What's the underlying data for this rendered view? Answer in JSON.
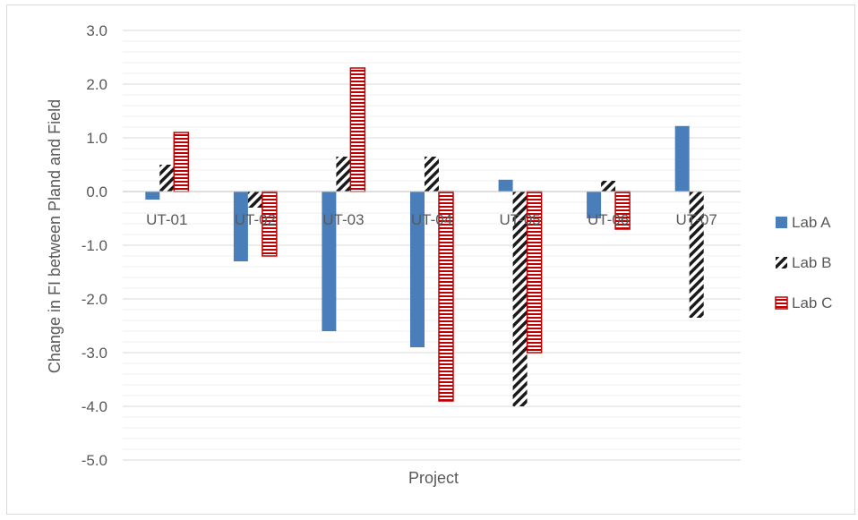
{
  "chart_data": {
    "type": "bar",
    "title": "",
    "xlabel": "Project",
    "ylabel": "Change in FI between Pland and Field",
    "ylim": [
      -5,
      3
    ],
    "yticks": [
      "3.0",
      "2.0",
      "1.0",
      "0.0",
      "-1.0",
      "-2.0",
      "-3.0",
      "-4.0",
      "-5.0"
    ],
    "categories": [
      "UT-01",
      "UT-02",
      "UT-03",
      "UT-04",
      "UT-05",
      "UT-06",
      "UT-07"
    ],
    "series": [
      {
        "name": "Lab A",
        "values": [
          -0.15,
          -1.3,
          -2.6,
          -2.9,
          0.22,
          -0.5,
          1.22
        ],
        "color": "#4a7ebb",
        "pattern": "solid"
      },
      {
        "name": "Lab B",
        "values": [
          0.5,
          -0.3,
          0.65,
          0.65,
          -4.0,
          0.2,
          -2.35
        ],
        "color": "#1a1a1a",
        "pattern": "diagonal-stripes"
      },
      {
        "name": "Lab C",
        "values": [
          1.1,
          -1.2,
          2.3,
          -3.9,
          -3.0,
          -0.7,
          null
        ],
        "color": "#c00000",
        "pattern": "horizontal-stripes"
      }
    ],
    "grid": true,
    "legend": "right"
  }
}
